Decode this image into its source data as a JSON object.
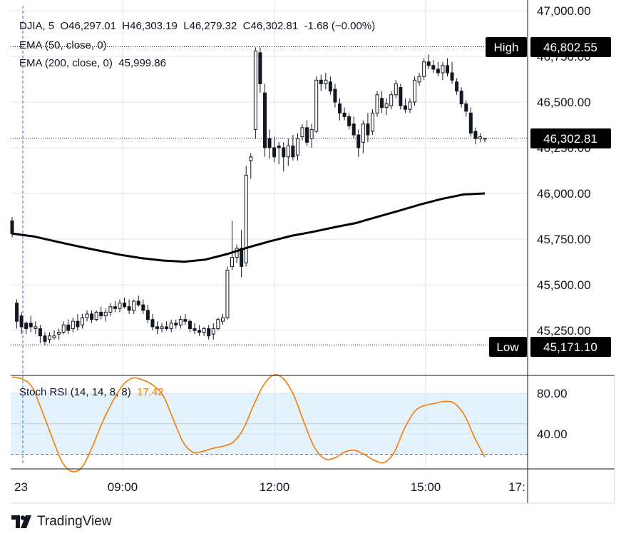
{
  "header": {
    "symbol": "DJIA",
    "interval": "5",
    "open": "O46,297.01",
    "high": "H46,303.19",
    "low": "L46,279.32",
    "close": "C46,302.81",
    "change": "-1.68 (−0.00%)"
  },
  "indicators": {
    "ema50": "EMA (50, close, 0)",
    "ema200": "EMA (200, close, 0)",
    "ema200_value": "45,999.86",
    "stoch": "Stoch RSI (14, 14, 8, 8)",
    "stoch_value": "17.42"
  },
  "badges": {
    "high_label": "High",
    "high_value": "46,802.55",
    "low_label": "Low",
    "low_value": "45,171.10",
    "last_value": "46,302.81"
  },
  "brand": {
    "name": "TradingView"
  },
  "colors": {
    "candle": "#131722",
    "ema": "#000000",
    "stoch": "#f57c00",
    "band": "#e3f2fd",
    "grid": "#e0e3eb"
  },
  "chart_data": [
    {
      "type": "candlestick",
      "title": "DJIA, 5",
      "x_ticks": [
        "23",
        "09:00",
        "12:00",
        "15:00",
        "17:"
      ],
      "y_ticks": [
        "47,000.00",
        "46,750.00",
        "46,500.00",
        "46,250.00",
        "46,000.00",
        "45,750.00",
        "45,500.00",
        "45,250.00"
      ],
      "ylim": [
        45050,
        47000
      ],
      "grid": true,
      "high_line": 46802.55,
      "low_line": 45171.1,
      "last_price": 46302.81,
      "series": [
        {
          "type": "candlestick",
          "ohlc": [
            [
              45850,
              45870,
              45760,
              45780
            ],
            [
              45400,
              45420,
              45260,
              45300
            ],
            [
              45330,
              45350,
              45230,
              45270
            ],
            [
              45290,
              45300,
              45230,
              45260
            ],
            [
              45290,
              45330,
              45240,
              45270
            ],
            [
              45260,
              45300,
              45230,
              45270
            ],
            [
              45260,
              45280,
              45180,
              45220
            ],
            [
              45220,
              45240,
              45170,
              45190
            ],
            [
              45200,
              45240,
              45180,
              45220
            ],
            [
              45210,
              45250,
              45200,
              45220
            ],
            [
              45230,
              45260,
              45200,
              45240
            ],
            [
              45240,
              45300,
              45230,
              45280
            ],
            [
              45280,
              45310,
              45230,
              45250
            ],
            [
              45260,
              45320,
              45240,
              45300
            ],
            [
              45300,
              45340,
              45250,
              45270
            ],
            [
              45280,
              45340,
              45260,
              45320
            ],
            [
              45320,
              45360,
              45300,
              45340
            ],
            [
              45340,
              45360,
              45290,
              45310
            ],
            [
              45310,
              45360,
              45300,
              45350
            ],
            [
              45350,
              45380,
              45310,
              45330
            ],
            [
              45330,
              45370,
              45300,
              45350
            ],
            [
              45350,
              45400,
              45330,
              45380
            ],
            [
              45380,
              45410,
              45350,
              45370
            ],
            [
              45370,
              45420,
              45350,
              45400
            ],
            [
              45400,
              45430,
              45370,
              45380
            ],
            [
              45380,
              45420,
              45340,
              45360
            ],
            [
              45360,
              45420,
              45340,
              45410
            ],
            [
              45410,
              45440,
              45380,
              45390
            ],
            [
              45390,
              45420,
              45340,
              45360
            ],
            [
              45360,
              45390,
              45290,
              45310
            ],
            [
              45310,
              45340,
              45250,
              45270
            ],
            [
              45270,
              45300,
              45230,
              45260
            ],
            [
              45260,
              45290,
              45240,
              45270
            ],
            [
              45270,
              45300,
              45250,
              45260
            ],
            [
              45260,
              45310,
              45240,
              45290
            ],
            [
              45290,
              45310,
              45260,
              45280
            ],
            [
              45280,
              45330,
              45260,
              45310
            ],
            [
              45310,
              45340,
              45280,
              45300
            ],
            [
              45300,
              45310,
              45240,
              45260
            ],
            [
              45260,
              45290,
              45230,
              45250
            ],
            [
              45250,
              45280,
              45220,
              45240
            ],
            [
              45240,
              45270,
              45220,
              45260
            ],
            [
              45260,
              45280,
              45200,
              45220
            ],
            [
              45230,
              45290,
              45200,
              45260
            ],
            [
              45260,
              45320,
              45250,
              45310
            ],
            [
              45300,
              45340,
              45280,
              45320
            ],
            [
              45320,
              45600,
              45310,
              45580
            ],
            [
              45600,
              45850,
              45580,
              45650
            ],
            [
              45650,
              45720,
              45620,
              45700
            ],
            [
              45700,
              45800,
              45540,
              45600
            ],
            [
              45620,
              46150,
              45600,
              46100
            ],
            [
              46180,
              46220,
              46080,
              46200
            ],
            [
              46350,
              46800,
              46300,
              46780
            ],
            [
              46770,
              46800,
              46550,
              46600
            ],
            [
              46550,
              46600,
              46200,
              46250
            ],
            [
              46300,
              46350,
              46190,
              46250
            ],
            [
              46250,
              46310,
              46170,
              46200
            ],
            [
              46260,
              46280,
              46160,
              46250
            ],
            [
              46250,
              46280,
              46120,
              46200
            ],
            [
              46200,
              46300,
              46150,
              46260
            ],
            [
              46260,
              46320,
              46180,
              46200
            ],
            [
              46210,
              46330,
              46180,
              46300
            ],
            [
              46310,
              46380,
              46290,
              46360
            ],
            [
              46360,
              46400,
              46260,
              46280
            ],
            [
              46300,
              46380,
              46250,
              46350
            ],
            [
              46340,
              46640,
              46330,
              46620
            ],
            [
              46620,
              46650,
              46560,
              46600
            ],
            [
              46600,
              46660,
              46570,
              46620
            ],
            [
              46610,
              46640,
              46540,
              46560
            ],
            [
              46570,
              46600,
              46470,
              46500
            ],
            [
              46490,
              46520,
              46400,
              46440
            ],
            [
              46440,
              46470,
              46400,
              46420
            ],
            [
              46420,
              46440,
              46350,
              46370
            ],
            [
              46380,
              46420,
              46300,
              46320
            ],
            [
              46320,
              46350,
              46200,
              46250
            ],
            [
              46280,
              46400,
              46220,
              46380
            ],
            [
              46380,
              46440,
              46280,
              46320
            ],
            [
              46340,
              46460,
              46320,
              46440
            ],
            [
              46440,
              46560,
              46420,
              46540
            ],
            [
              46520,
              46560,
              46440,
              46470
            ],
            [
              46470,
              46520,
              46430,
              46490
            ],
            [
              46480,
              46560,
              46460,
              46540
            ],
            [
              46540,
              46620,
              46520,
              46600
            ],
            [
              46580,
              46600,
              46460,
              46480
            ],
            [
              46480,
              46520,
              46440,
              46460
            ],
            [
              46460,
              46520,
              46440,
              46500
            ],
            [
              46500,
              46640,
              46480,
              46620
            ],
            [
              46610,
              46660,
              46590,
              46640
            ],
            [
              46640,
              46740,
              46620,
              46720
            ],
            [
              46720,
              46760,
              46680,
              46700
            ],
            [
              46700,
              46730,
              46660,
              46680
            ],
            [
              46680,
              46720,
              46640,
              46660
            ],
            [
              46660,
              46720,
              46620,
              46700
            ],
            [
              46700,
              46740,
              46640,
              46660
            ],
            [
              46660,
              46720,
              46600,
              46620
            ],
            [
              46610,
              46630,
              46540,
              46560
            ],
            [
              46560,
              46580,
              46470,
              46490
            ],
            [
              46490,
              46510,
              46420,
              46450
            ],
            [
              46440,
              46470,
              46310,
              46330
            ],
            [
              46340,
              46360,
              46270,
              46300
            ],
            [
              46300,
              46330,
              46280,
              46310
            ],
            [
              46297.01,
              46303.19,
              46279.32,
              46302.81
            ]
          ]
        },
        {
          "type": "line",
          "name": "EMA (200, close, 0)",
          "values": [
            45780,
            45765,
            45738,
            45712,
            45688,
            45665,
            45646,
            45633,
            45626,
            45638,
            45668,
            45705,
            45738,
            45768,
            45790,
            45815,
            45838,
            45872,
            45905,
            45940,
            45970,
            45994,
            46000
          ]
        }
      ]
    },
    {
      "type": "line",
      "title": "Stoch RSI (14, 14, 8, 8)",
      "y_ticks": [
        "80.00",
        "40.00"
      ],
      "ylim": [
        0,
        100
      ],
      "band": [
        20,
        80
      ],
      "series": [
        {
          "name": "Stoch RSI (14, 14, 8, 8)",
          "values": [
            96,
            94,
            86,
            62,
            36,
            12,
            3,
            8,
            28,
            52,
            72,
            88,
            95,
            93,
            88,
            78,
            55,
            32,
            22,
            23,
            26,
            28,
            32,
            45,
            68,
            88,
            98,
            94,
            78,
            52,
            28,
            16,
            16,
            22,
            24,
            20,
            14,
            12,
            22,
            45,
            62,
            68,
            70,
            72,
            70,
            58,
            36,
            17.42
          ]
        }
      ]
    }
  ]
}
